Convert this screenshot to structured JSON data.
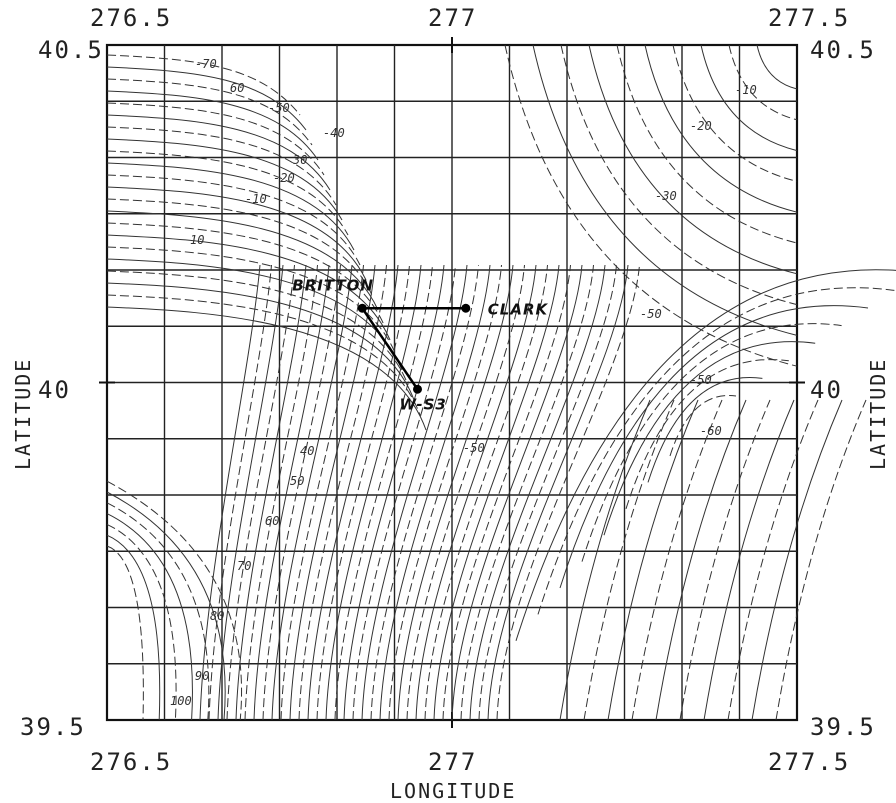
{
  "map": {
    "axes": {
      "x": {
        "label": "LONGITUDE",
        "ticks": [
          "276.5",
          "277",
          "277.5"
        ]
      },
      "y": {
        "label": "LATITUDE",
        "ticks": [
          "40.5",
          "40",
          "39.5"
        ]
      }
    },
    "sites": [
      {
        "name": "BRITTON",
        "lon": 276.87,
        "lat": 40.11
      },
      {
        "name": "CLARK",
        "lon": 277.02,
        "lat": 40.11
      },
      {
        "name": "W-S3",
        "lon": 276.95,
        "lat": 39.99
      }
    ],
    "contour_labels": [
      "-70",
      "60",
      "-50",
      "-40",
      "30",
      "-20",
      "-10",
      "10",
      "-50",
      "-30",
      "-20",
      "-10",
      "-50",
      "-60",
      "40",
      "50",
      "60",
      "70",
      "80",
      "90",
      "100",
      "-50"
    ]
  }
}
